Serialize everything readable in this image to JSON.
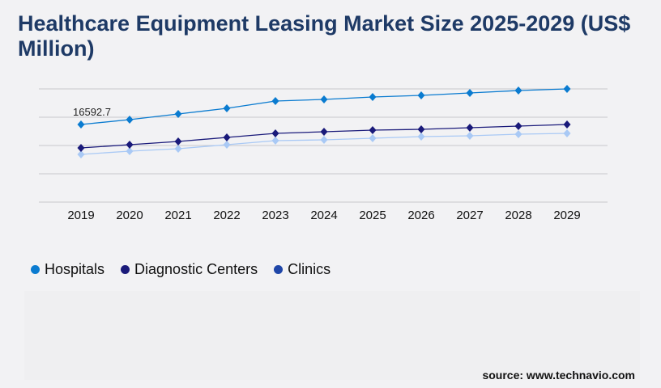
{
  "title": "Healthcare Equipment Leasing Market Size 2025-2029 (US$ Million)",
  "source": "source: www.technavio.com",
  "chart_data": {
    "type": "line",
    "title": "Healthcare Equipment Leasing Market Size 2025-2029 (US$ Million)",
    "x": [
      "2019",
      "2020",
      "2021",
      "2022",
      "2023",
      "2024",
      "2025",
      "2026",
      "2027",
      "2028",
      "2029"
    ],
    "ylim": [
      0,
      24200
    ],
    "grid": true,
    "legend_position": "bottom-left",
    "annotations": [
      {
        "series": "Hospitals",
        "x": "2019",
        "text": "16592.7"
      }
    ],
    "series": [
      {
        "name": "Hospitals",
        "color": "#0a7bd0",
        "values": [
          16593,
          17631,
          18841,
          20051,
          21607,
          21953,
          22471,
          22817,
          23336,
          23854,
          24200
        ]
      },
      {
        "name": "Diagnostic Centers",
        "color": "#1a1a7a",
        "values": [
          11581,
          12273,
          12964,
          13829,
          14693,
          15039,
          15384,
          15557,
          15903,
          16249,
          16594
        ]
      },
      {
        "name": "Clinics",
        "color": "#a9c9f5",
        "legend_color": "#1f46a8",
        "values": [
          10199,
          10890,
          11409,
          12273,
          13137,
          13310,
          13656,
          14001,
          14174,
          14520,
          14693
        ]
      }
    ]
  }
}
